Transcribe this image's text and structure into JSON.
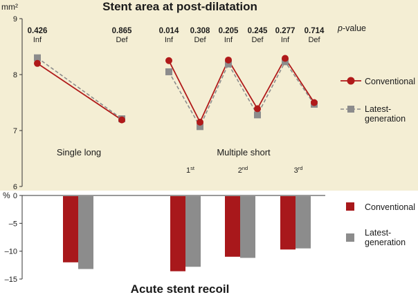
{
  "chart_data": [
    {
      "type": "line",
      "title": "Stent area at post-dilatation",
      "ylabel": "mm²",
      "ylim": [
        6,
        9
      ],
      "yticks": [
        6,
        7,
        8,
        9
      ],
      "p_value_label": "p-value",
      "p_value_label_italic_part": "p",
      "p_value_label_rest": "-value",
      "regions": [
        {
          "label": "Single long",
          "groups": [
            "Inf",
            "Def"
          ]
        },
        {
          "label": "Multiple short",
          "groups": [
            "Inf",
            "Def",
            "Inf",
            "Def",
            "Inf",
            "Def"
          ]
        }
      ],
      "categories": [
        "Inf",
        "Def",
        "Inf",
        "Def",
        "Inf",
        "Def",
        "Inf",
        "Def"
      ],
      "p_values": [
        "0.426",
        "0.865",
        "0.014",
        "0.308",
        "0.205",
        "0.245",
        "0.277",
        "0.714"
      ],
      "sublabels": [
        {
          "num": "1",
          "sup": "st"
        },
        {
          "num": "2",
          "sup": "nd"
        },
        {
          "num": "3",
          "sup": "rd"
        }
      ],
      "series": [
        {
          "name": "Conventional",
          "color": "#b01a1a",
          "marker": "circle",
          "values": [
            8.2,
            7.19,
            8.25,
            7.15,
            8.26,
            7.39,
            8.29,
            7.5
          ]
        },
        {
          "name": "Latest-generation",
          "name_lines": [
            "Latest-",
            "generation"
          ],
          "color": "#8c8c8c",
          "marker": "square",
          "values": [
            8.3,
            7.21,
            8.05,
            7.07,
            8.19,
            7.28,
            8.23,
            7.47
          ]
        }
      ],
      "legend": "right"
    },
    {
      "type": "bar",
      "title": "Acute stent recoil",
      "ylabel": "%",
      "ylim": [
        -15,
        0
      ],
      "yticks": [
        0,
        -5,
        -10,
        -15
      ],
      "yticklabels": [
        "0",
        "–5",
        "–10",
        "–15"
      ],
      "categories": [
        "Single long",
        "Multiple short 1st",
        "Multiple short 2nd",
        "Multiple short 3rd"
      ],
      "series": [
        {
          "name": "Conventional",
          "color": "#a8181b",
          "values": [
            -12.0,
            -13.6,
            -11.0,
            -9.7
          ]
        },
        {
          "name": "Latest-generation",
          "name_lines": [
            "Latest-",
            "generation"
          ],
          "color": "#8c8c8c",
          "values": [
            -13.2,
            -12.8,
            -11.2,
            -9.5
          ]
        }
      ],
      "legend": "right"
    }
  ]
}
